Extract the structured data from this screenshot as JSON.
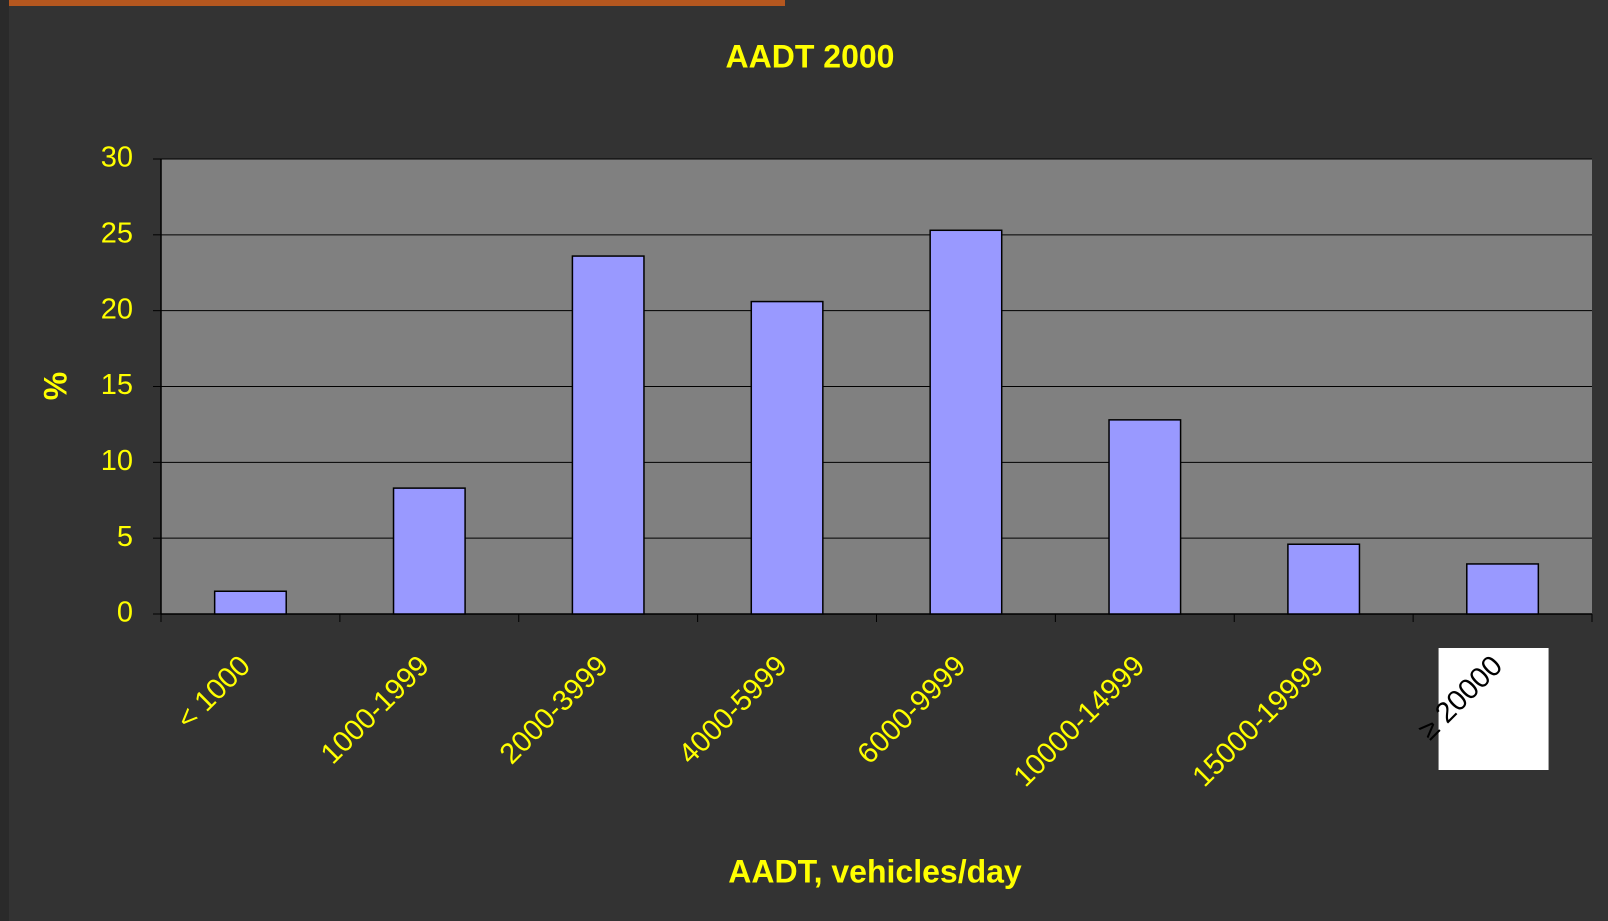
{
  "chart_data": {
    "type": "bar",
    "title": "AADT 2000",
    "x_label": "AADT, vehicles/day",
    "y_label": "%",
    "categories": [
      "< 1000",
      "1000-1999",
      "2000-3999",
      "4000-5999",
      "6000-9999",
      "10000-14999",
      "15000-19999",
      "≥ 20000"
    ],
    "values": [
      1.5,
      8.3,
      23.6,
      20.6,
      25.3,
      12.8,
      4.6,
      3.3
    ],
    "color": "#9999ff",
    "ylim": [
      0,
      30
    ],
    "yticks": [
      0,
      5,
      10,
      15,
      20,
      25,
      30
    ],
    "grid": true
  }
}
